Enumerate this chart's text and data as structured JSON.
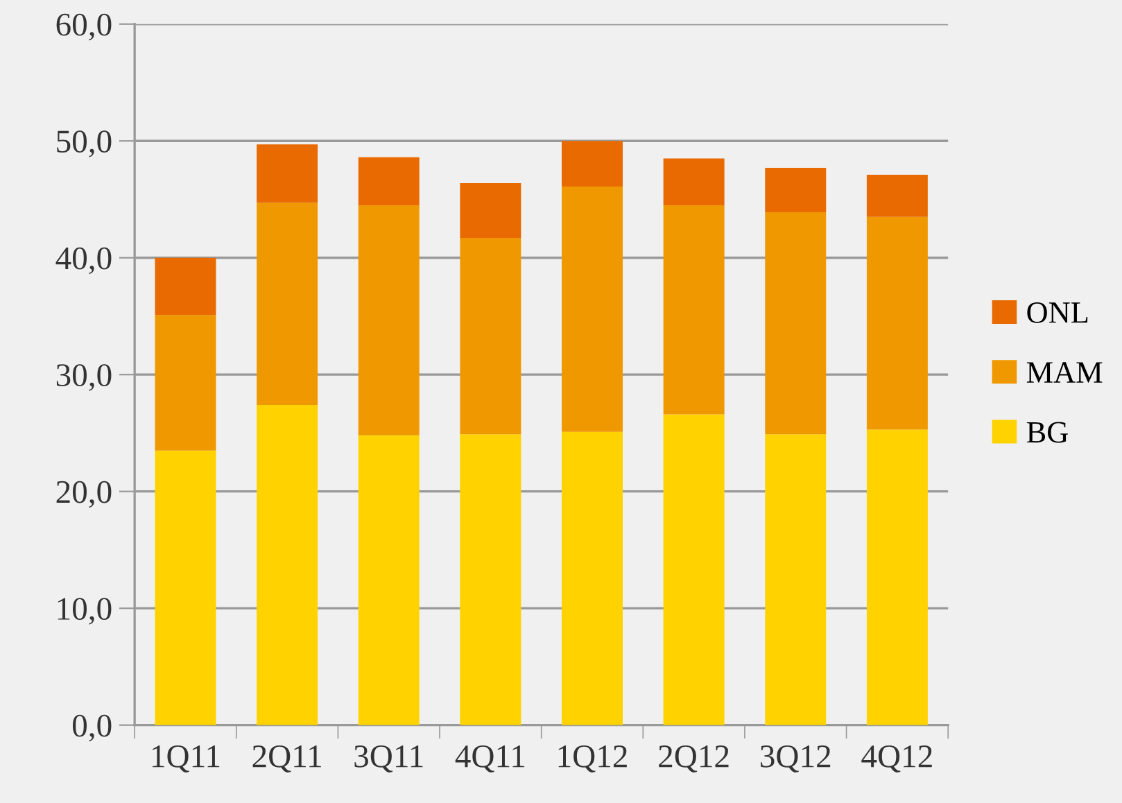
{
  "chart_data": {
    "type": "bar",
    "stacked": true,
    "categories": [
      "1Q11",
      "2Q11",
      "3Q11",
      "4Q11",
      "1Q12",
      "2Q12",
      "3Q12",
      "4Q12"
    ],
    "series": [
      {
        "name": "BG",
        "color": "#ffd200",
        "values": [
          23.5,
          27.4,
          24.8,
          24.9,
          25.1,
          26.6,
          24.9,
          25.3
        ]
      },
      {
        "name": "MAM",
        "color": "#f09800",
        "values": [
          11.6,
          17.3,
          19.7,
          16.8,
          21.0,
          17.9,
          19.0,
          18.2
        ]
      },
      {
        "name": "ONL",
        "color": "#e86a00",
        "values": [
          4.9,
          5.0,
          4.1,
          4.7,
          3.9,
          4.0,
          3.8,
          3.6
        ]
      }
    ],
    "ylim": [
      0,
      60
    ],
    "yticks": [
      {
        "value": 0,
        "label": "0,0"
      },
      {
        "value": 10,
        "label": "10,0"
      },
      {
        "value": 20,
        "label": "20,0"
      },
      {
        "value": 30,
        "label": "30,0"
      },
      {
        "value": 40,
        "label": "40,0"
      },
      {
        "value": 50,
        "label": "50,0"
      },
      {
        "value": 60,
        "label": "60,0"
      }
    ],
    "grid": "y",
    "legend": "right"
  }
}
